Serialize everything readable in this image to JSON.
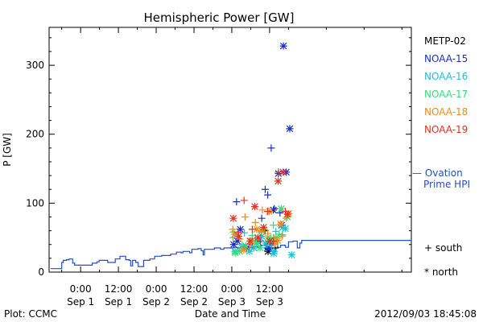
{
  "chart_data": {
    "type": "scatter",
    "title": "Hemispheric Power [GW]",
    "ylabel": "P [GW]",
    "xlabel": "Date and Time",
    "ylim": [
      0,
      355
    ],
    "xlim": [
      -10,
      105
    ],
    "yticks": [
      0,
      100,
      200,
      300
    ],
    "xticks": [
      {
        "x": 0,
        "line1": "0:00",
        "line2": "Sep 1"
      },
      {
        "x": 12,
        "line1": "12:00",
        "line2": "Sep 1"
      },
      {
        "x": 24,
        "line1": "0:00",
        "line2": "Sep 2"
      },
      {
        "x": 36,
        "line1": "12:00",
        "line2": "Sep 2"
      },
      {
        "x": 48,
        "line1": "0:00",
        "line2": "Sep 3"
      },
      {
        "x": 60,
        "line1": "12:00",
        "line2": "Sep 3"
      }
    ],
    "legend": [
      {
        "name": "METP-02",
        "color": "#000000"
      },
      {
        "name": "NOAA-15",
        "color": "#1a2fc4"
      },
      {
        "name": "NOAA-16",
        "color": "#1fbedb"
      },
      {
        "name": "NOAA-17",
        "color": "#33dd77"
      },
      {
        "name": "NOAA-18",
        "color": "#f08c1a"
      },
      {
        "name": "NOAA-19",
        "color": "#e0321e"
      }
    ],
    "ovation_label_line1": "— Ovation",
    "ovation_label_line2": "Prime HPI",
    "ovation_color": "#1e50c8",
    "marker_legend": [
      {
        "symbol": "+",
        "label": "south"
      },
      {
        "symbol": "*",
        "label": "north"
      }
    ],
    "ovation": [
      [
        -9.5,
        5
      ],
      [
        -6.3,
        5
      ],
      [
        -6.0,
        14
      ],
      [
        -5.5,
        17
      ],
      [
        -4.5,
        18
      ],
      [
        -3.6,
        19
      ],
      [
        -2.5,
        13
      ],
      [
        -1.9,
        10
      ],
      [
        3.7,
        13
      ],
      [
        5.2,
        15
      ],
      [
        5.9,
        17
      ],
      [
        8.6,
        14
      ],
      [
        9.5,
        14
      ],
      [
        11.0,
        19
      ],
      [
        12.5,
        23
      ],
      [
        14.3,
        18
      ],
      [
        15.4,
        17
      ],
      [
        15.9,
        9
      ],
      [
        16.5,
        17
      ],
      [
        17.5,
        14
      ],
      [
        18.3,
        8
      ],
      [
        20.0,
        17
      ],
      [
        22.0,
        19
      ],
      [
        23.5,
        23
      ],
      [
        25.7,
        24
      ],
      [
        28.6,
        26
      ],
      [
        30.4,
        29
      ],
      [
        31.9,
        28
      ],
      [
        32.5,
        30
      ],
      [
        34.6,
        28
      ],
      [
        35.3,
        33
      ],
      [
        37.3,
        34
      ],
      [
        38.3,
        31
      ],
      [
        38.9,
        25
      ],
      [
        39.3,
        33
      ],
      [
        40.7,
        33
      ],
      [
        42.5,
        35
      ],
      [
        44.4,
        33
      ],
      [
        45.5,
        35
      ],
      [
        47.0,
        35
      ],
      [
        48.5,
        36
      ],
      [
        49.8,
        35
      ],
      [
        51.5,
        37
      ],
      [
        52.6,
        36
      ],
      [
        53.4,
        40
      ],
      [
        54.5,
        37
      ],
      [
        56.0,
        36
      ],
      [
        57.2,
        39
      ],
      [
        58.2,
        39
      ],
      [
        59.3,
        41
      ],
      [
        60.0,
        39
      ],
      [
        61.0,
        44
      ],
      [
        62.5,
        36
      ],
      [
        63.5,
        39
      ],
      [
        65.0,
        36
      ],
      [
        66.0,
        44
      ],
      [
        67.4,
        45
      ],
      [
        68.8,
        35
      ],
      [
        69.6,
        42
      ],
      [
        70.2,
        46
      ]
    ],
    "series": [
      {
        "name": "METP-02",
        "color": "#000000",
        "south": [
          [
            58.5,
            60
          ],
          [
            60.4,
            45
          ],
          [
            61.8,
            35
          ]
        ],
        "north": [
          [
            59.5,
            30
          ]
        ]
      },
      {
        "name": "NOAA-15",
        "color": "#1a2fc4",
        "south": [
          [
            49.5,
            102
          ],
          [
            53.5,
            36
          ],
          [
            57.5,
            78
          ],
          [
            58.6,
            120
          ],
          [
            59.4,
            112
          ],
          [
            60.5,
            180
          ],
          [
            61.5,
            92
          ],
          [
            63.3,
            86
          ]
        ],
        "north": [
          [
            48.6,
            40
          ],
          [
            49.8,
            45
          ],
          [
            50.7,
            62
          ],
          [
            52.7,
            35
          ],
          [
            56.3,
            44
          ],
          [
            59.3,
            35
          ],
          [
            60.0,
            34
          ],
          [
            61.2,
            90
          ],
          [
            62.8,
            143
          ],
          [
            63.8,
            68
          ],
          [
            64.4,
            328
          ],
          [
            65.3,
            145
          ],
          [
            66.4,
            208
          ]
        ]
      },
      {
        "name": "NOAA-16",
        "color": "#1fbedb",
        "south": [
          [
            48.4,
            50
          ],
          [
            52.0,
            57
          ],
          [
            55.5,
            48
          ],
          [
            57.3,
            58
          ],
          [
            59.2,
            40
          ],
          [
            60.6,
            38
          ],
          [
            62.0,
            59
          ],
          [
            64.1,
            54
          ]
        ],
        "north": [
          [
            49.0,
            30
          ],
          [
            51.1,
            36
          ],
          [
            53.6,
            30
          ],
          [
            55.0,
            35
          ],
          [
            57.5,
            52
          ],
          [
            58.7,
            42
          ],
          [
            61.3,
            27
          ],
          [
            61.5,
            30
          ],
          [
            64.2,
            65
          ],
          [
            65.0,
            63
          ],
          [
            67.0,
            25
          ]
        ]
      },
      {
        "name": "NOAA-17",
        "color": "#33dd77",
        "south": [
          [
            48.5,
            58
          ],
          [
            51.3,
            40
          ],
          [
            54.5,
            53
          ],
          [
            56.2,
            43
          ],
          [
            58.3,
            62
          ],
          [
            59.8,
            45
          ],
          [
            61.2,
            68
          ],
          [
            63.0,
            55
          ]
        ],
        "north": [
          [
            49.1,
            28
          ],
          [
            50.5,
            30
          ],
          [
            52.5,
            38
          ],
          [
            55.8,
            42
          ],
          [
            57.0,
            35
          ],
          [
            59.5,
            50
          ],
          [
            60.4,
            48
          ],
          [
            62.0,
            50
          ],
          [
            63.7,
            92
          ],
          [
            65.6,
            80
          ]
        ]
      },
      {
        "name": "NOAA-18",
        "color": "#f08c1a",
        "south": [
          [
            48.3,
            62
          ],
          [
            50.5,
            48
          ],
          [
            52.2,
            80
          ],
          [
            53.7,
            38
          ],
          [
            55.5,
            72
          ],
          [
            57.7,
            90
          ],
          [
            59.4,
            56
          ],
          [
            61.3,
            50
          ],
          [
            63.9,
            52
          ],
          [
            65.2,
            78
          ]
        ],
        "north": [
          [
            48.9,
            55
          ],
          [
            51.8,
            32
          ],
          [
            54.2,
            45
          ],
          [
            55.9,
            62
          ],
          [
            57.5,
            60
          ],
          [
            59.9,
            88
          ],
          [
            61.8,
            42
          ],
          [
            62.6,
            46
          ],
          [
            63.5,
            70
          ],
          [
            66.1,
            85
          ]
        ]
      },
      {
        "name": "NOAA-19",
        "color": "#e0321e",
        "south": [
          [
            50.0,
            58
          ],
          [
            51.9,
            104
          ],
          [
            54.5,
            62
          ],
          [
            57.1,
            45
          ],
          [
            59.4,
            88
          ],
          [
            61.2,
            45
          ],
          [
            62.8,
            145
          ],
          [
            65.0,
            88
          ]
        ],
        "north": [
          [
            48.5,
            78
          ],
          [
            50.2,
            52
          ],
          [
            53.8,
            45
          ],
          [
            55.3,
            95
          ],
          [
            56.3,
            50
          ],
          [
            58.1,
            65
          ],
          [
            60.0,
            45
          ],
          [
            62.7,
            132
          ],
          [
            64.3,
            145
          ],
          [
            65.7,
            84
          ]
        ]
      }
    ]
  },
  "footer": {
    "plot_credit": "Plot: CCMC",
    "timestamp": "2012/09/03 18:45:08"
  }
}
